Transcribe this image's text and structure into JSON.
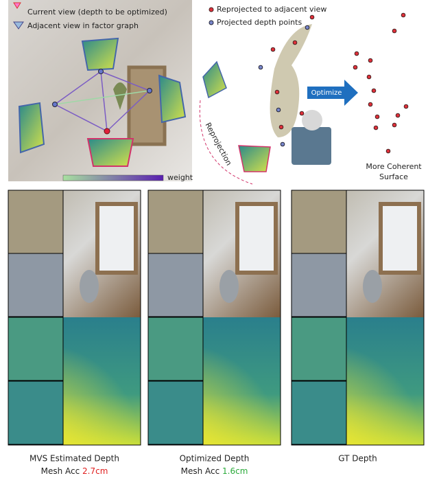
{
  "top_left": {
    "legend": [
      "Current view (depth to be optimized)",
      "Adjacent view in factor graph"
    ],
    "weight_label": "weight"
  },
  "reprojection_label": "Reprojection",
  "top_right": {
    "legend": [
      "Reprojected to adjacent view",
      "Projected depth points"
    ],
    "optimize_label": "Optimize",
    "result_label": [
      "More Coherent",
      "Surface"
    ]
  },
  "panels": [
    {
      "title": "MVS Estimated Depth",
      "metric_label": "Mesh Acc",
      "metric_value": "2.7cm"
    },
    {
      "title": "Optimized Depth",
      "metric_label": "Mesh Acc",
      "metric_value": "1.6cm"
    },
    {
      "title": "GT Depth"
    }
  ]
}
